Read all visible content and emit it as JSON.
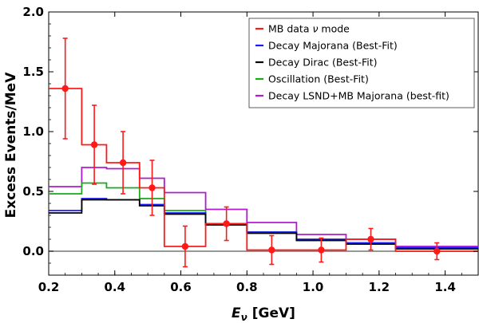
{
  "chart_data": {
    "type": "line",
    "xlabel_symbol": "E",
    "xlabel_sub": "ν",
    "xlabel_unit": "[GeV]",
    "ylabel": "Excess Events/MeV",
    "xlim": [
      0.2,
      1.5
    ],
    "ylim": [
      -0.2,
      2.0
    ],
    "xticks": [
      0.2,
      0.4,
      0.6,
      0.8,
      1.0,
      1.2,
      1.4
    ],
    "yticks": [
      0.0,
      0.5,
      1.0,
      1.5,
      2.0
    ],
    "xtick_labels": [
      "0.2",
      "0.4",
      "0.6",
      "0.8",
      "1.0",
      "1.2",
      "1.4"
    ],
    "ytick_labels": [
      "0.0",
      "0.5",
      "1.0",
      "1.5",
      "2.0"
    ],
    "bin_edges": [
      0.2,
      0.3,
      0.375,
      0.475,
      0.55,
      0.675,
      0.8,
      0.95,
      1.1,
      1.25,
      1.5
    ],
    "zero_line": true,
    "legend_position": "top-right",
    "series": [
      {
        "name": "Decay Majorana (Best-Fit)",
        "color": "#1a1aff",
        "values": [
          0.34,
          0.44,
          0.43,
          0.39,
          0.32,
          0.23,
          0.16,
          0.1,
          0.07,
          0.03
        ]
      },
      {
        "name": "Decay Dirac (Best-Fit)",
        "color": "#000000",
        "values": [
          0.32,
          0.43,
          0.43,
          0.38,
          0.31,
          0.22,
          0.15,
          0.09,
          0.06,
          0.02
        ]
      },
      {
        "name": "Oscillation (Best-Fit)",
        "color": "#1aaa1a",
        "values": [
          0.48,
          0.57,
          0.53,
          0.44,
          0.34,
          0.23,
          0.16,
          0.09,
          0.06,
          0.02
        ]
      },
      {
        "name": "Decay LSND+MB Majorana (best-fit)",
        "color": "#b01ad0",
        "values": [
          0.54,
          0.7,
          0.69,
          0.61,
          0.49,
          0.35,
          0.24,
          0.14,
          0.1,
          0.04
        ]
      }
    ],
    "data_series": {
      "name_prefix": "MB data ",
      "name_symbol": "ν",
      "name_suffix": " mode",
      "color": "#ff1a1a",
      "values": [
        1.36,
        0.89,
        0.74,
        0.53,
        0.04,
        0.23,
        0.01,
        0.01,
        0.1,
        0.0
      ],
      "points": [
        {
          "x": 0.25,
          "y": 1.36,
          "yerr": 0.42
        },
        {
          "x": 0.338,
          "y": 0.89,
          "yerr": 0.33
        },
        {
          "x": 0.425,
          "y": 0.74,
          "yerr": 0.26
        },
        {
          "x": 0.513,
          "y": 0.53,
          "yerr": 0.23
        },
        {
          "x": 0.613,
          "y": 0.04,
          "yerr": 0.17
        },
        {
          "x": 0.738,
          "y": 0.23,
          "yerr": 0.14
        },
        {
          "x": 0.875,
          "y": 0.01,
          "yerr": 0.12
        },
        {
          "x": 1.025,
          "y": 0.01,
          "yerr": 0.1
        },
        {
          "x": 1.175,
          "y": 0.1,
          "yerr": 0.09
        },
        {
          "x": 1.375,
          "y": 0.0,
          "yerr": 0.07
        }
      ]
    }
  }
}
